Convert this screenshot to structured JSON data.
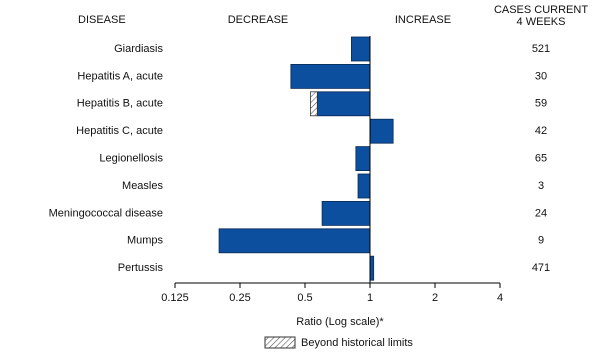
{
  "chart_data": {
    "type": "bar",
    "orientation": "horizontal",
    "log_scale": true,
    "disease_header": "DISEASE",
    "decrease_label": "DECREASE",
    "increase_label": "INCREASE",
    "cases_header": [
      "CASES CURRENT",
      "4 WEEKS"
    ],
    "categories": [
      "Giardiasis",
      "Hepatitis A, acute",
      "Hepatitis B, acute",
      "Hepatitis C, acute",
      "Legionellosis",
      "Measles",
      "Meningococcal disease",
      "Mumps",
      "Pertussis"
    ],
    "values": [
      0.82,
      0.43,
      0.57,
      1.28,
      0.86,
      0.88,
      0.6,
      0.2,
      1.04
    ],
    "color": "#0b4f9e",
    "beyond": {
      "name": "Beyond historical limits",
      "values": [
        null,
        null,
        0.53,
        null,
        null,
        null,
        null,
        null,
        null
      ]
    },
    "cases": [
      521,
      30,
      59,
      42,
      65,
      3,
      24,
      9,
      471
    ],
    "xlim": [
      0.125,
      4
    ],
    "xticks": [
      0.125,
      0.25,
      0.5,
      1,
      2,
      4
    ],
    "xlabel": "Ratio (Log scale)*"
  }
}
